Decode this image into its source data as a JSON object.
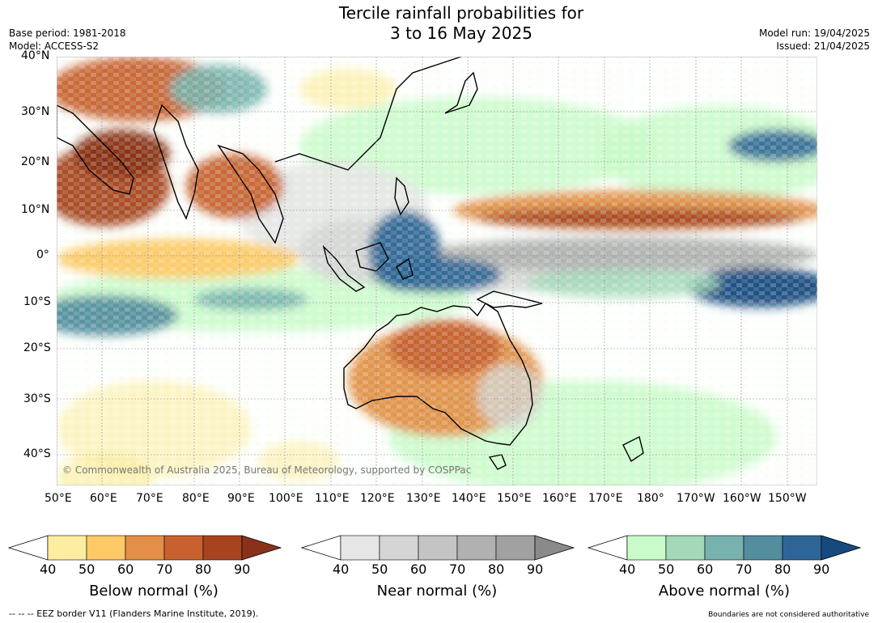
{
  "title": {
    "line1": "Tercile rainfall probabilities for",
    "line2": "3 to 16 May 2025"
  },
  "meta": {
    "base_period": "Base period: 1981-2018",
    "model": "Model: ACCESS-S2",
    "model_run": "Model run: 19/04/2025",
    "issued": "Issued: 21/04/2025"
  },
  "map": {
    "lat_labels": [
      "40°N",
      "30°N",
      "20°N",
      "10°N",
      "0°",
      "10°S",
      "20°S",
      "30°S",
      "40°S"
    ],
    "lon_labels": [
      "50°E",
      "60°E",
      "70°E",
      "80°E",
      "90°E",
      "100°E",
      "110°E",
      "120°E",
      "130°E",
      "140°E",
      "150°E",
      "160°E",
      "170°E",
      "180°",
      "170°W",
      "160°W",
      "150°W"
    ],
    "copyright": "© Commonwealth of Australia 2025, Bureau of Meteorology, supported by COSPPac",
    "colors": {
      "below": [
        "#fdeda0",
        "#fec966",
        "#e38f47",
        "#c8612f",
        "#a8431f",
        "#8a3219"
      ],
      "near": [
        "#e6e6e6",
        "#d5d5d5",
        "#c4c4c4",
        "#b1b1b1",
        "#a1a1a1",
        "#8a8a8a"
      ],
      "above": [
        "#c9fac9",
        "#a3d8b8",
        "#78b2ae",
        "#538d9e",
        "#2f6596",
        "#17497f"
      ]
    }
  },
  "colorbars": [
    {
      "id": "below",
      "label": "Below normal (%)",
      "ticks": [
        "40",
        "50",
        "60",
        "70",
        "80",
        "90"
      ]
    },
    {
      "id": "near",
      "label": "Near normal (%)",
      "ticks": [
        "40",
        "50",
        "60",
        "70",
        "80",
        "90"
      ]
    },
    {
      "id": "above",
      "label": "Above normal (%)",
      "ticks": [
        "40",
        "50",
        "60",
        "70",
        "80",
        "90"
      ]
    }
  ],
  "footer": {
    "eez": "--  --  -- EEZ border V11 (Flanders Marine Institute, 2019).",
    "disclaimer": "Boundaries are not considered authoritative"
  }
}
